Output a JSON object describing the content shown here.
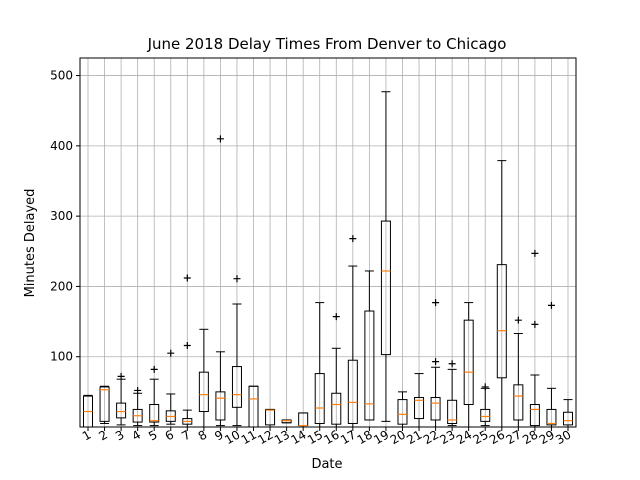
{
  "chart_data": {
    "type": "box",
    "title": "June 2018 Delay Times From Denver to Chicago",
    "xlabel": "Date",
    "ylabel": "Minutes Delayed",
    "ylim": [
      0,
      525
    ],
    "yticks": [
      100,
      200,
      300,
      400,
      500
    ],
    "grid": true,
    "categories": [
      "1",
      "2",
      "3",
      "4",
      "5",
      "6",
      "7",
      "8",
      "9",
      "10",
      "11",
      "12",
      "13",
      "14",
      "15",
      "16",
      "17",
      "18",
      "19",
      "20",
      "21",
      "22",
      "23",
      "24",
      "25",
      "26",
      "27",
      "28",
      "29",
      "30"
    ],
    "boxes": [
      {
        "date": "1",
        "min": 0,
        "q1": 0,
        "median": 22,
        "q3": 44,
        "max": 45,
        "fliers": []
      },
      {
        "date": "2",
        "min": 5,
        "q1": 8,
        "median": 53,
        "q3": 57,
        "max": 58,
        "fliers": []
      },
      {
        "date": "3",
        "min": 3,
        "q1": 13,
        "median": 22,
        "q3": 34,
        "max": 68,
        "fliers": [
          72
        ]
      },
      {
        "date": "4",
        "min": 2,
        "q1": 7,
        "median": 16,
        "q3": 25,
        "max": 48,
        "fliers": [
          52
        ]
      },
      {
        "date": "5",
        "min": 2,
        "q1": 7,
        "median": 9,
        "q3": 32,
        "max": 68,
        "fliers": [
          82
        ]
      },
      {
        "date": "6",
        "min": 4,
        "q1": 8,
        "median": 15,
        "q3": 23,
        "max": 47,
        "fliers": [
          105
        ]
      },
      {
        "date": "7",
        "min": 0,
        "q1": 4,
        "median": 8,
        "q3": 12,
        "max": 24,
        "fliers": [
          116,
          212
        ]
      },
      {
        "date": "8",
        "min": 0,
        "q1": 22,
        "median": 46,
        "q3": 78,
        "max": 139,
        "fliers": []
      },
      {
        "date": "9",
        "min": 2,
        "q1": 10,
        "median": 41,
        "q3": 50,
        "max": 107,
        "fliers": [
          410
        ]
      },
      {
        "date": "10",
        "min": 2,
        "q1": 28,
        "median": 46,
        "q3": 86,
        "max": 175,
        "fliers": [
          211
        ]
      },
      {
        "date": "11",
        "min": 0,
        "q1": 0,
        "median": 40,
        "q3": 58,
        "max": 58,
        "fliers": []
      },
      {
        "date": "12",
        "min": 0,
        "q1": 3,
        "median": 24,
        "q3": 25,
        "max": 25,
        "fliers": []
      },
      {
        "date": "13",
        "min": 6,
        "q1": 6,
        "median": 9,
        "q3": 10,
        "max": 10,
        "fliers": []
      },
      {
        "date": "14",
        "min": 0,
        "q1": 2,
        "median": 2,
        "q3": 20,
        "max": 20,
        "fliers": []
      },
      {
        "date": "15",
        "min": 0,
        "q1": 5,
        "median": 27,
        "q3": 76,
        "max": 177,
        "fliers": []
      },
      {
        "date": "16",
        "min": 0,
        "q1": 4,
        "median": 32,
        "q3": 48,
        "max": 112,
        "fliers": [
          157
        ]
      },
      {
        "date": "17",
        "min": 0,
        "q1": 5,
        "median": 35,
        "q3": 95,
        "max": 229,
        "fliers": [
          268
        ]
      },
      {
        "date": "18",
        "min": 10,
        "q1": 10,
        "median": 33,
        "q3": 165,
        "max": 222,
        "fliers": []
      },
      {
        "date": "19",
        "min": 8,
        "q1": 103,
        "median": 222,
        "q3": 293,
        "max": 477,
        "fliers": []
      },
      {
        "date": "20",
        "min": 0,
        "q1": 4,
        "median": 18,
        "q3": 39,
        "max": 50,
        "fliers": []
      },
      {
        "date": "21",
        "min": 0,
        "q1": 12,
        "median": 38,
        "q3": 42,
        "max": 76,
        "fliers": []
      },
      {
        "date": "22",
        "min": 0,
        "q1": 10,
        "median": 34,
        "q3": 42,
        "max": 85,
        "fliers": [
          93,
          177
        ]
      },
      {
        "date": "23",
        "min": 2,
        "q1": 5,
        "median": 10,
        "q3": 38,
        "max": 82,
        "fliers": [
          90
        ]
      },
      {
        "date": "24",
        "min": 0,
        "q1": 32,
        "median": 78,
        "q3": 152,
        "max": 177,
        "fliers": []
      },
      {
        "date": "25",
        "min": 2,
        "q1": 8,
        "median": 15,
        "q3": 25,
        "max": 55,
        "fliers": [
          57
        ]
      },
      {
        "date": "26",
        "min": 0,
        "q1": 70,
        "median": 137,
        "q3": 231,
        "max": 379,
        "fliers": []
      },
      {
        "date": "27",
        "min": 0,
        "q1": 10,
        "median": 44,
        "q3": 60,
        "max": 133,
        "fliers": [
          152
        ]
      },
      {
        "date": "28",
        "min": 0,
        "q1": 2,
        "median": 25,
        "q3": 32,
        "max": 74,
        "fliers": [
          146,
          247
        ]
      },
      {
        "date": "29",
        "min": 0,
        "q1": 3,
        "median": 5,
        "q3": 25,
        "max": 55,
        "fliers": [
          173
        ]
      },
      {
        "date": "30",
        "min": 0,
        "q1": 3,
        "median": 9,
        "q3": 21,
        "max": 39,
        "fliers": []
      }
    ],
    "colors": {
      "box": "#000000",
      "median": "#ff7f0e",
      "grid": "#b0b0b0"
    }
  }
}
